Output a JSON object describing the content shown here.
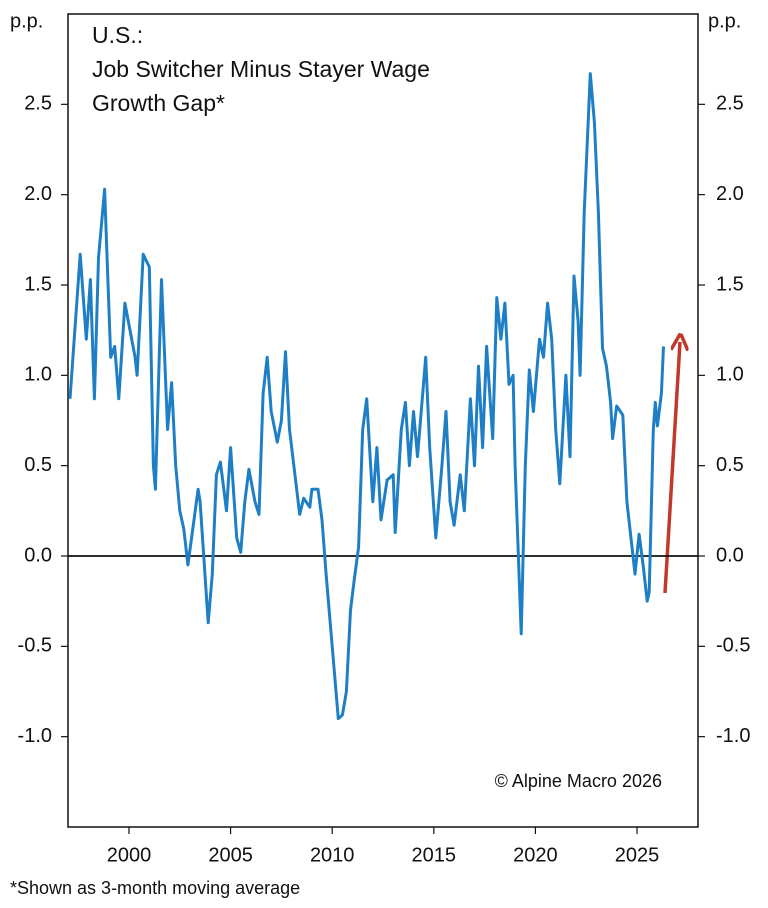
{
  "chart_data": {
    "type": "line",
    "title": [
      "U.S.:",
      "Job Switcher Minus Stayer Wage",
      "Growth Gap*"
    ],
    "y_unit": "p.p.",
    "y2_unit": "p.p.",
    "source": "© Alpine Macro 2026",
    "footnote": "*Shown as 3-month moving average",
    "xlim": [
      1997,
      2028
    ],
    "xticks": [
      2000,
      2005,
      2010,
      2015,
      2020,
      2025
    ],
    "ylim": [
      -1.5,
      3.0
    ],
    "yticks": [
      {
        "value": -1,
        "label": "-1.0"
      },
      -0.5,
      {
        "value": 0,
        "label": "0.0"
      },
      0.5,
      {
        "value": 1,
        "label": "1.0"
      },
      1.5,
      {
        "value": 2,
        "label": "2.0"
      },
      2.5
    ],
    "y2lim": [
      -1.5,
      3.0
    ],
    "y2ticks": [
      {
        "value": -1,
        "label": "-1.0"
      },
      -0.5,
      {
        "value": 0,
        "label": "0.0"
      },
      0.5,
      {
        "value": 1,
        "label": "1.0"
      },
      1.5,
      {
        "value": 2,
        "label": "2.0"
      },
      2.5
    ],
    "zero_line": true,
    "series": [
      {
        "color": "#1f7fc6",
        "x": [
          1997.1,
          1997.6,
          1997.9,
          1998.1,
          1998.3,
          1998.5,
          1998.8,
          1999.1,
          1999.3,
          1999.5,
          1999.8,
          2000.3,
          2000.4,
          2000.7,
          2001.0,
          2001.2,
          2001.3,
          2001.6,
          2001.9,
          2002.1,
          2002.3,
          2002.5,
          2002.7,
          2002.9,
          2003.2,
          2003.4,
          2003.5,
          2003.9,
          2004.1,
          2004.3,
          2004.5,
          2004.8,
          2005.0,
          2005.3,
          2005.5,
          2005.7,
          2005.9,
          2006.2,
          2006.4,
          2006.6,
          2006.8,
          2007.0,
          2007.3,
          2007.5,
          2007.7,
          2007.9,
          2008.4,
          2008.6,
          2008.9,
          2009.0,
          2009.3,
          2009.5,
          2009.7,
          2010.0,
          2010.3,
          2010.5,
          2010.7,
          2010.9,
          2011.1,
          2011.3,
          2011.5,
          2011.7,
          2012.0,
          2012.2,
          2012.4,
          2012.7,
          2013.0,
          2013.1,
          2013.4,
          2013.6,
          2013.8,
          2014.0,
          2014.2,
          2014.6,
          2014.8,
          2015.1,
          2015.4,
          2015.6,
          2015.8,
          2016.0,
          2016.3,
          2016.5,
          2016.8,
          2017.0,
          2017.2,
          2017.4,
          2017.6,
          2017.9,
          2018.1,
          2018.3,
          2018.5,
          2018.7,
          2018.9,
          2019.0,
          2019.3,
          2019.5,
          2019.7,
          2019.9,
          2020.2,
          2020.4,
          2020.6,
          2020.8,
          2021.0,
          2021.2,
          2021.5,
          2021.7,
          2021.9,
          2022.1,
          2022.2,
          2022.4,
          2022.7,
          2022.9,
          2023.1,
          2023.3,
          2023.5,
          2023.7,
          2023.8,
          2024.0,
          2024.3,
          2024.5,
          2024.8,
          2024.9,
          2025.1,
          2025.3,
          2025.5,
          2025.6,
          2025.8,
          2025.9,
          2026.0,
          2026.2,
          2026.3
        ],
        "values": [
          0.87,
          1.67,
          1.2,
          1.53,
          0.87,
          1.65,
          2.03,
          1.1,
          1.16,
          0.87,
          1.4,
          1.1,
          1.0,
          1.67,
          1.6,
          0.5,
          0.37,
          1.53,
          0.7,
          0.96,
          0.5,
          0.25,
          0.15,
          -0.05,
          0.2,
          0.37,
          0.3,
          -0.37,
          -0.1,
          0.45,
          0.52,
          0.25,
          0.6,
          0.1,
          0.02,
          0.3,
          0.48,
          0.3,
          0.23,
          0.9,
          1.1,
          0.8,
          0.63,
          0.75,
          1.13,
          0.7,
          0.23,
          0.32,
          0.27,
          0.37,
          0.37,
          0.2,
          -0.1,
          -0.5,
          -0.9,
          -0.88,
          -0.75,
          -0.3,
          -0.12,
          0.05,
          0.7,
          0.87,
          0.3,
          0.6,
          0.2,
          0.42,
          0.45,
          0.13,
          0.7,
          0.85,
          0.5,
          0.8,
          0.55,
          1.1,
          0.6,
          0.1,
          0.5,
          0.8,
          0.3,
          0.17,
          0.45,
          0.25,
          0.87,
          0.5,
          1.05,
          0.6,
          1.16,
          0.65,
          1.43,
          1.2,
          1.4,
          0.95,
          1.0,
          0.5,
          -0.43,
          0.5,
          1.03,
          0.8,
          1.2,
          1.1,
          1.4,
          1.2,
          0.7,
          0.4,
          1.0,
          0.55,
          1.55,
          1.3,
          1.0,
          1.9,
          2.67,
          2.4,
          1.9,
          1.15,
          1.05,
          0.85,
          0.65,
          0.83,
          0.78,
          0.3,
          0.0,
          -0.1,
          0.12,
          -0.05,
          -0.25,
          -0.2,
          0.7,
          0.85,
          0.72,
          0.9,
          1.16
        ]
      }
    ]
  }
}
